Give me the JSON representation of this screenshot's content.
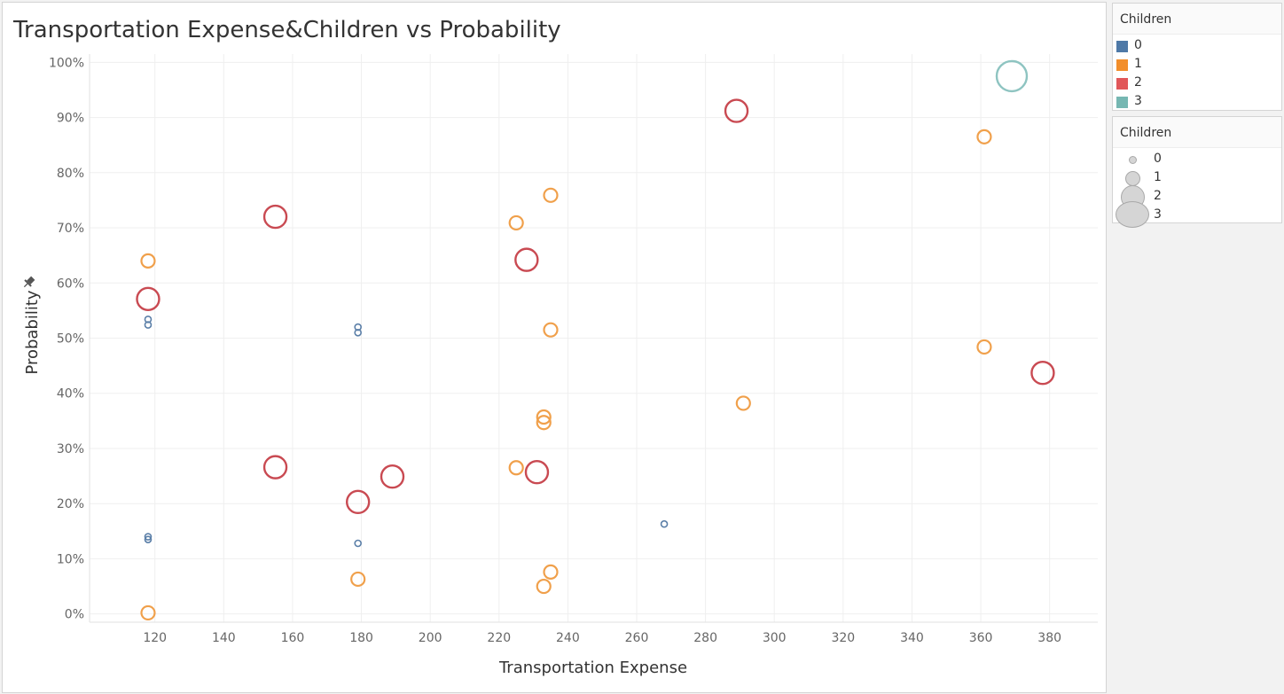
{
  "chart_data": {
    "type": "scatter",
    "title": "Transportation Expense&Children vs Probability",
    "xlabel": "Transportation Expense",
    "ylabel": "Probability",
    "xlim": [
      101,
      394
    ],
    "ylim": [
      -1.5,
      101.5
    ],
    "x_ticks": [
      120,
      140,
      160,
      180,
      200,
      220,
      240,
      260,
      280,
      300,
      320,
      340,
      360,
      380
    ],
    "y_ticks": [
      0,
      10,
      20,
      30,
      40,
      50,
      60,
      70,
      80,
      90,
      100
    ],
    "y_tick_suffix": "%",
    "grid": true,
    "marker": "hollow-circle",
    "color_legend": {
      "title": "Children",
      "placement": "right",
      "items": [
        {
          "label": "0",
          "color": "#4e79a7"
        },
        {
          "label": "1",
          "color": "#f28e2b"
        },
        {
          "label": "2",
          "color": "#e15759"
        },
        {
          "label": "3",
          "color": "#76b7b2"
        }
      ]
    },
    "size_legend": {
      "title": "Children",
      "placement": "right",
      "items": [
        "0",
        "1",
        "2",
        "3"
      ]
    },
    "series": [
      {
        "name": "0",
        "color": "#5b7fa8",
        "points": [
          {
            "x": 118,
            "y": 53.4
          },
          {
            "x": 118,
            "y": 52.4
          },
          {
            "x": 179,
            "y": 52.0
          },
          {
            "x": 179,
            "y": 51.0
          },
          {
            "x": 118,
            "y": 14.0
          },
          {
            "x": 118,
            "y": 13.5
          },
          {
            "x": 179,
            "y": 12.8
          },
          {
            "x": 268,
            "y": 16.3
          }
        ]
      },
      {
        "name": "1",
        "color": "#f0a04b",
        "points": [
          {
            "x": 361,
            "y": 86.5
          },
          {
            "x": 235,
            "y": 75.9
          },
          {
            "x": 225,
            "y": 70.9
          },
          {
            "x": 118,
            "y": 64.0
          },
          {
            "x": 235,
            "y": 51.5
          },
          {
            "x": 361,
            "y": 48.4
          },
          {
            "x": 291,
            "y": 38.2
          },
          {
            "x": 233,
            "y": 35.7
          },
          {
            "x": 233,
            "y": 34.7
          },
          {
            "x": 225,
            "y": 26.5
          },
          {
            "x": 179,
            "y": 6.3
          },
          {
            "x": 235,
            "y": 7.6
          },
          {
            "x": 233,
            "y": 5.0
          },
          {
            "x": 118,
            "y": 0.2
          }
        ]
      },
      {
        "name": "2",
        "color": "#c94a52",
        "points": [
          {
            "x": 289,
            "y": 91.2
          },
          {
            "x": 155,
            "y": 72.0
          },
          {
            "x": 228,
            "y": 64.2
          },
          {
            "x": 118,
            "y": 57.1
          },
          {
            "x": 378,
            "y": 43.7
          },
          {
            "x": 155,
            "y": 26.6
          },
          {
            "x": 189,
            "y": 24.9
          },
          {
            "x": 231,
            "y": 25.7
          },
          {
            "x": 179,
            "y": 20.3
          }
        ]
      },
      {
        "name": "3",
        "color": "#8ec4c1",
        "points": [
          {
            "x": 369,
            "y": 97.5
          }
        ]
      }
    ]
  }
}
